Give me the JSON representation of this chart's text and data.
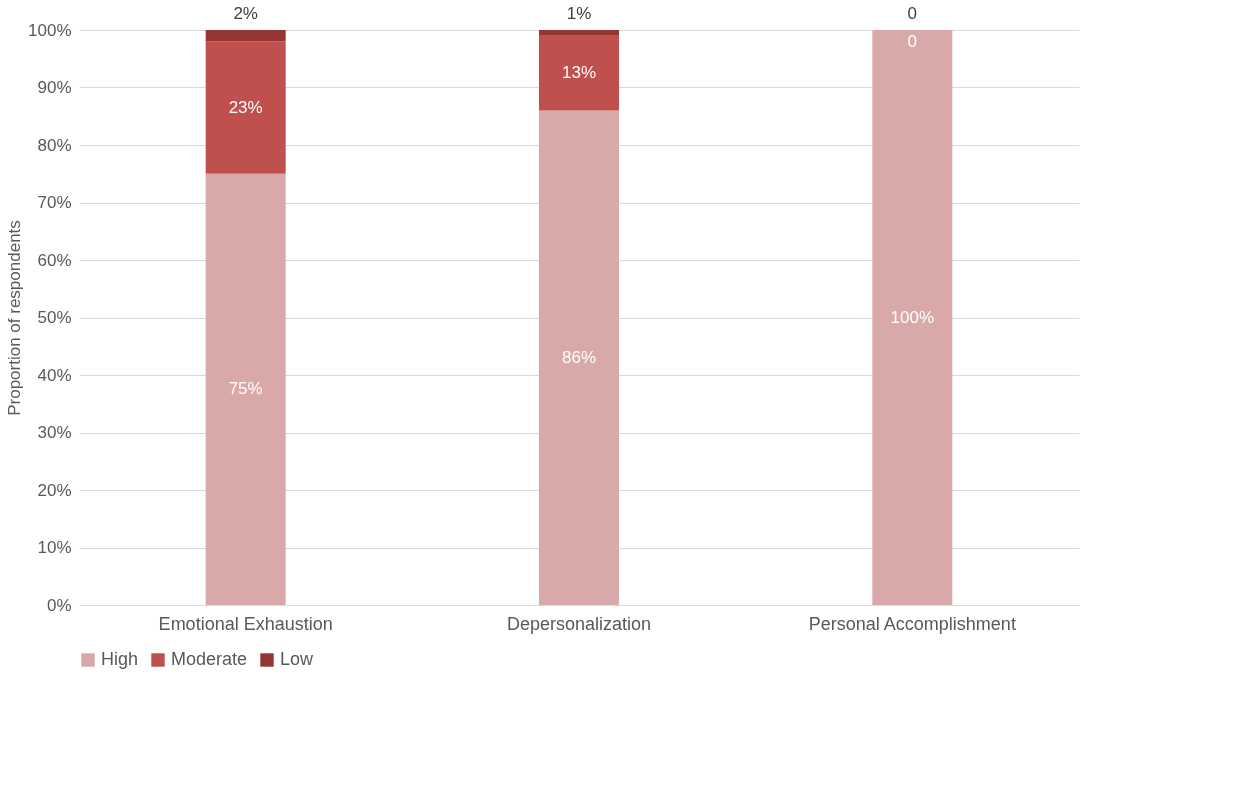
{
  "chart_data": {
    "type": "bar",
    "stacked": true,
    "ylabel": "Proportion of respondents",
    "categories": [
      "Emotional Exhaustion",
      "Depersonalization",
      "Personal Accomplishment"
    ],
    "series": [
      {
        "name": "High",
        "color": "#d9a9a9",
        "values": [
          75,
          86,
          100
        ],
        "value_labels": [
          "75%",
          "86%",
          "100%"
        ]
      },
      {
        "name": "Moderate",
        "color": "#c0504d",
        "values": [
          23,
          13,
          0
        ],
        "value_labels": [
          "23%",
          "13%",
          "0"
        ]
      },
      {
        "name": "Low",
        "color": "#943634",
        "values": [
          2,
          1,
          0
        ],
        "value_labels": [
          "2%",
          "1%",
          "0"
        ]
      }
    ],
    "ylim": [
      0,
      100
    ],
    "yticks": [
      {
        "value": 0,
        "label": "0%"
      },
      {
        "value": 10,
        "label": "10%"
      },
      {
        "value": 20,
        "label": "20%"
      },
      {
        "value": 30,
        "label": "30%"
      },
      {
        "value": 40,
        "label": "40%"
      },
      {
        "value": 50,
        "label": "50%"
      },
      {
        "value": 60,
        "label": "60%"
      },
      {
        "value": 70,
        "label": "70%"
      },
      {
        "value": 80,
        "label": "80%"
      },
      {
        "value": 90,
        "label": "90%"
      },
      {
        "value": 100,
        "label": "100%"
      }
    ],
    "grid": "y",
    "legend": "bottom"
  }
}
